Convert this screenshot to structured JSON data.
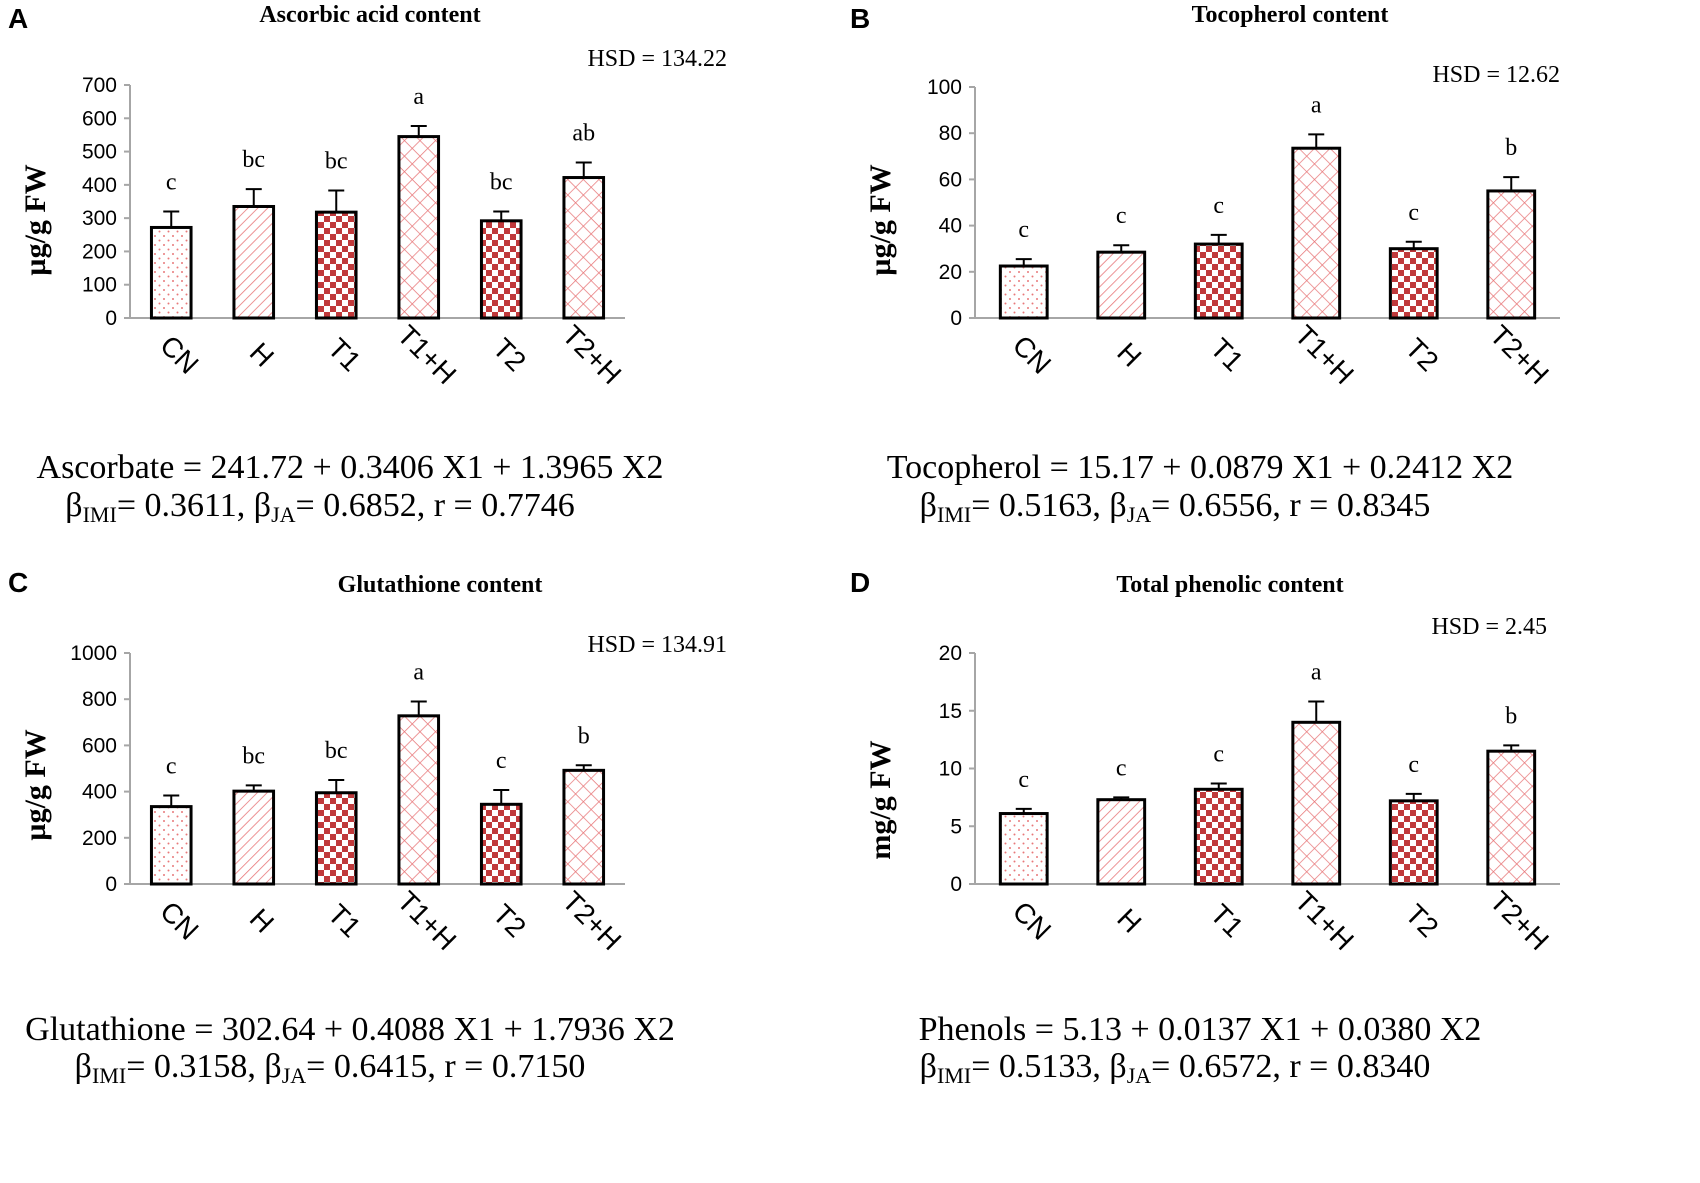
{
  "figure": {
    "treatments": [
      "CN",
      "H",
      "T1",
      "T1+H",
      "T2",
      "T2+H"
    ],
    "colors": {
      "bar_dark": "#c0393b",
      "bar_light": "#e8787a",
      "axis": "#a6a6a6",
      "bar_outline": "#000000"
    }
  },
  "chart_data": [
    {
      "panel": "A",
      "type": "bar",
      "title": "Ascorbic acid content",
      "ylabel": "µg/g FW",
      "categories": [
        "CN",
        "H",
        "T1",
        "T1+H",
        "T2",
        "T2+H"
      ],
      "values": [
        272,
        335,
        318,
        545,
        292,
        422
      ],
      "errors": [
        48,
        52,
        65,
        32,
        28,
        45
      ],
      "letters": [
        "c",
        "bc",
        "bc",
        "a",
        "bc",
        "ab"
      ],
      "ylim": [
        0,
        700
      ],
      "yticks": [
        0,
        100,
        200,
        300,
        400,
        500,
        600,
        700
      ],
      "hsd": "HSD = 134.22",
      "equation": "Ascorbate = 241.72 + 0.3406 X1 + 1.3965 X2",
      "stats": {
        "imi": "= 0.3611,",
        "ja": "= 0.6852, r = 0.7746"
      }
    },
    {
      "panel": "B",
      "type": "bar",
      "title": "Tocopherol content",
      "ylabel": "µg/g FW",
      "categories": [
        "CN",
        "H",
        "T1",
        "T1+H",
        "T2",
        "T2+H"
      ],
      "values": [
        22.5,
        28.5,
        32,
        73.5,
        30,
        55
      ],
      "errors": [
        3,
        3,
        4,
        6,
        3,
        6
      ],
      "letters": [
        "c",
        "c",
        "c",
        "a",
        "c",
        "b"
      ],
      "ylim": [
        0,
        100
      ],
      "yticks": [
        0,
        20,
        40,
        60,
        80,
        100
      ],
      "hsd": "HSD = 12.62",
      "equation": "Tocopherol = 15.17 + 0.0879 X1 + 0.2412 X2",
      "stats": {
        "imi": "= 0.5163,",
        "ja": "= 0.6556, r = 0.8345"
      }
    },
    {
      "panel": "C",
      "type": "bar",
      "title": "Glutathione content",
      "ylabel": "µg/g FW",
      "categories": [
        "CN",
        "H",
        "T1",
        "T1+H",
        "T2",
        "T2+H"
      ],
      "values": [
        335,
        402,
        395,
        728,
        345,
        492
      ],
      "errors": [
        48,
        25,
        55,
        62,
        62,
        22
      ],
      "letters": [
        "c",
        "bc",
        "bc",
        "a",
        "c",
        "b"
      ],
      "ylim": [
        0,
        1000
      ],
      "yticks": [
        0,
        200,
        400,
        600,
        800,
        1000
      ],
      "hsd": "HSD = 134.91",
      "equation": "Glutathione = 302.64 + 0.4088 X1 + 1.7936 X2",
      "stats": {
        "imi": "= 0.3158,",
        "ja": "= 0.6415, r = 0.7150"
      }
    },
    {
      "panel": "D",
      "type": "bar",
      "title": "Total phenolic content",
      "ylabel": "mg/g FW",
      "categories": [
        "CN",
        "H",
        "T1",
        "T1+H",
        "T2",
        "T2+H"
      ],
      "values": [
        6.1,
        7.3,
        8.2,
        14.0,
        7.2,
        11.5
      ],
      "errors": [
        0.4,
        0.2,
        0.5,
        1.8,
        0.6,
        0.5
      ],
      "letters": [
        "c",
        "c",
        "c",
        "a",
        "c",
        "b"
      ],
      "ylim": [
        0,
        20
      ],
      "yticks": [
        0,
        5,
        10,
        15,
        20
      ],
      "hsd": "HSD = 2.45",
      "equation": "Phenols = 5.13      + 0.0137 X1 + 0.0380 X2",
      "stats": {
        "imi": "= 0.5133,",
        "ja": "= 0.6572, r = 0.8340"
      }
    }
  ]
}
